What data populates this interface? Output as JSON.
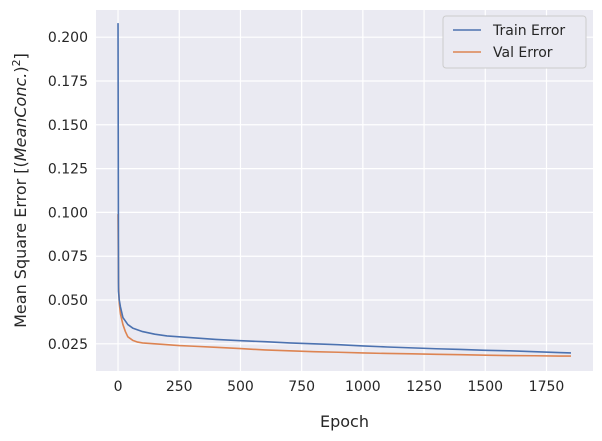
{
  "chart_data": {
    "type": "line",
    "title": "",
    "xlabel": "Epoch",
    "ylabel_prefix": "Mean Square Error [(",
    "ylabel_italic": "MeanConc.",
    "ylabel_suffix": ")",
    "ylabel_sup": "2",
    "ylabel_close": "]",
    "xlim": [
      -90,
      1940
    ],
    "ylim": [
      0.0095,
      0.2155
    ],
    "xticks": [
      0,
      250,
      500,
      750,
      1000,
      1250,
      1500,
      1750
    ],
    "xtick_labels": [
      "0",
      "250",
      "500",
      "750",
      "1000",
      "1250",
      "1500",
      "1750"
    ],
    "yticks": [
      0.025,
      0.05,
      0.075,
      0.1,
      0.125,
      0.15,
      0.175,
      0.2
    ],
    "ytick_labels": [
      "0.025",
      "0.050",
      "0.075",
      "0.100",
      "0.125",
      "0.150",
      "0.175",
      "0.200"
    ],
    "grid": true,
    "legend_position": "top-right",
    "series": [
      {
        "name": "Train Error",
        "color": "#4c72b0",
        "x": [
          0,
          2,
          5,
          10,
          20,
          40,
          60,
          80,
          100,
          150,
          200,
          250,
          300,
          400,
          500,
          600,
          700,
          800,
          900,
          1000,
          1100,
          1200,
          1300,
          1400,
          1500,
          1600,
          1700,
          1800,
          1850
        ],
        "y": [
          0.208,
          0.055,
          0.05,
          0.046,
          0.04,
          0.036,
          0.034,
          0.033,
          0.032,
          0.0305,
          0.0295,
          0.029,
          0.0285,
          0.0275,
          0.0268,
          0.0262,
          0.0255,
          0.025,
          0.0245,
          0.0238,
          0.0232,
          0.0227,
          0.0222,
          0.0218,
          0.0213,
          0.021,
          0.0205,
          0.02,
          0.0198
        ]
      },
      {
        "name": "Val Error",
        "color": "#dd8452",
        "x": [
          0,
          2,
          5,
          10,
          20,
          30,
          40,
          60,
          80,
          100,
          150,
          200,
          250,
          300,
          400,
          500,
          600,
          700,
          800,
          900,
          1000,
          1100,
          1200,
          1300,
          1400,
          1500,
          1600,
          1700,
          1800,
          1850
        ],
        "y": [
          0.099,
          0.06,
          0.048,
          0.042,
          0.036,
          0.032,
          0.029,
          0.027,
          0.026,
          0.0255,
          0.025,
          0.0245,
          0.024,
          0.0237,
          0.023,
          0.0223,
          0.0215,
          0.021,
          0.0205,
          0.0202,
          0.0198,
          0.0195,
          0.0193,
          0.019,
          0.0188,
          0.0185,
          0.0183,
          0.0182,
          0.018,
          0.018
        ]
      }
    ]
  }
}
